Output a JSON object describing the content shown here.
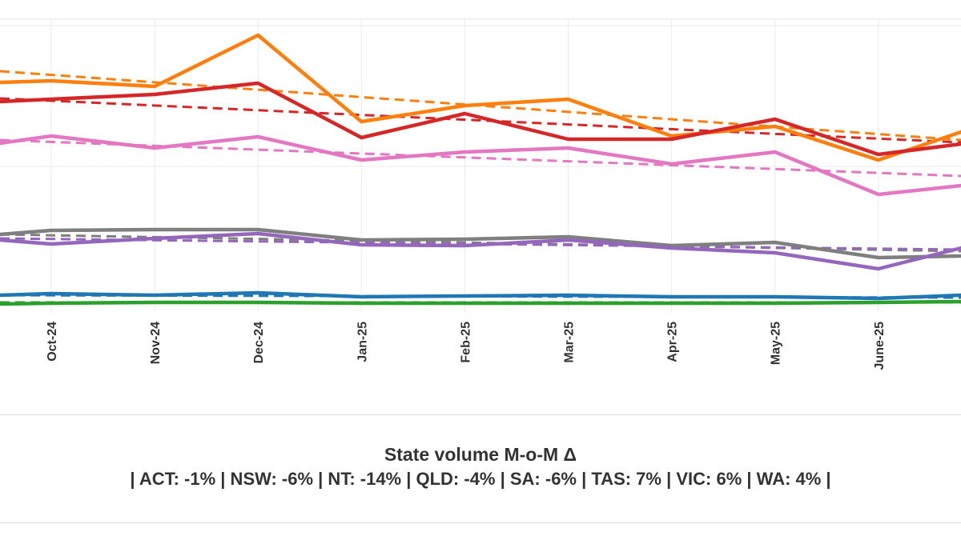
{
  "chart_data": {
    "type": "line",
    "categories": [
      "Oct-24",
      "Nov-24",
      "Dec-24",
      "Jan-25",
      "Feb-25",
      "Mar-25",
      "Apr-25",
      "May-25",
      "June-25"
    ],
    "x_label_rotation": -90,
    "grid": true,
    "trend_lines": true,
    "series": [
      {
        "key": "orange",
        "color": "#ff7f0e",
        "values": [
          101,
          108,
          44,
          152,
          132,
          124,
          170,
          158,
          200
        ],
        "start": 103,
        "end": 165,
        "trend": [
          89,
          175
        ]
      },
      {
        "key": "red",
        "color": "#d62728",
        "values": [
          124,
          118,
          104,
          172,
          142,
          174,
          174,
          149,
          193
        ],
        "start": 127,
        "end": 180,
        "trend": [
          123,
          178
        ]
      },
      {
        "key": "pink",
        "color": "#e377c2",
        "values": [
          170,
          185,
          171,
          200,
          190,
          185,
          205,
          190,
          243
        ],
        "start": 179,
        "end": 232,
        "trend": [
          175,
          220
        ]
      },
      {
        "key": "gray",
        "color": "#7f7f7f",
        "values": [
          288,
          287,
          287,
          300,
          299,
          296,
          307,
          303,
          322
        ],
        "start": 293,
        "end": 320,
        "trend": [
          293,
          314
        ]
      },
      {
        "key": "purple",
        "color": "#9467bd",
        "values": [
          305,
          298,
          292,
          306,
          307,
          300,
          310,
          316,
          336
        ],
        "start": 300,
        "end": 310,
        "trend": [
          298,
          312
        ]
      },
      {
        "key": "blue",
        "color": "#1f77b4",
        "values": [
          367,
          369,
          366,
          371,
          370,
          369,
          371,
          371,
          373
        ],
        "start": 369,
        "end": 369,
        "trend": [
          369,
          372
        ]
      },
      {
        "key": "green",
        "color": "#2ca02c",
        "values": [
          379,
          378,
          378,
          379,
          379,
          379,
          379,
          379,
          378
        ],
        "start": 380,
        "end": 377,
        "trend": [
          378,
          378
        ]
      }
    ]
  },
  "caption": {
    "title": "State volume M-o-M Δ",
    "subtitle": "| ACT: -1% | NSW: -6% | NT: -14% | QLD: -4% | SA: -6% | TAS: 7% | VIC: 6% | WA: 4% |"
  }
}
